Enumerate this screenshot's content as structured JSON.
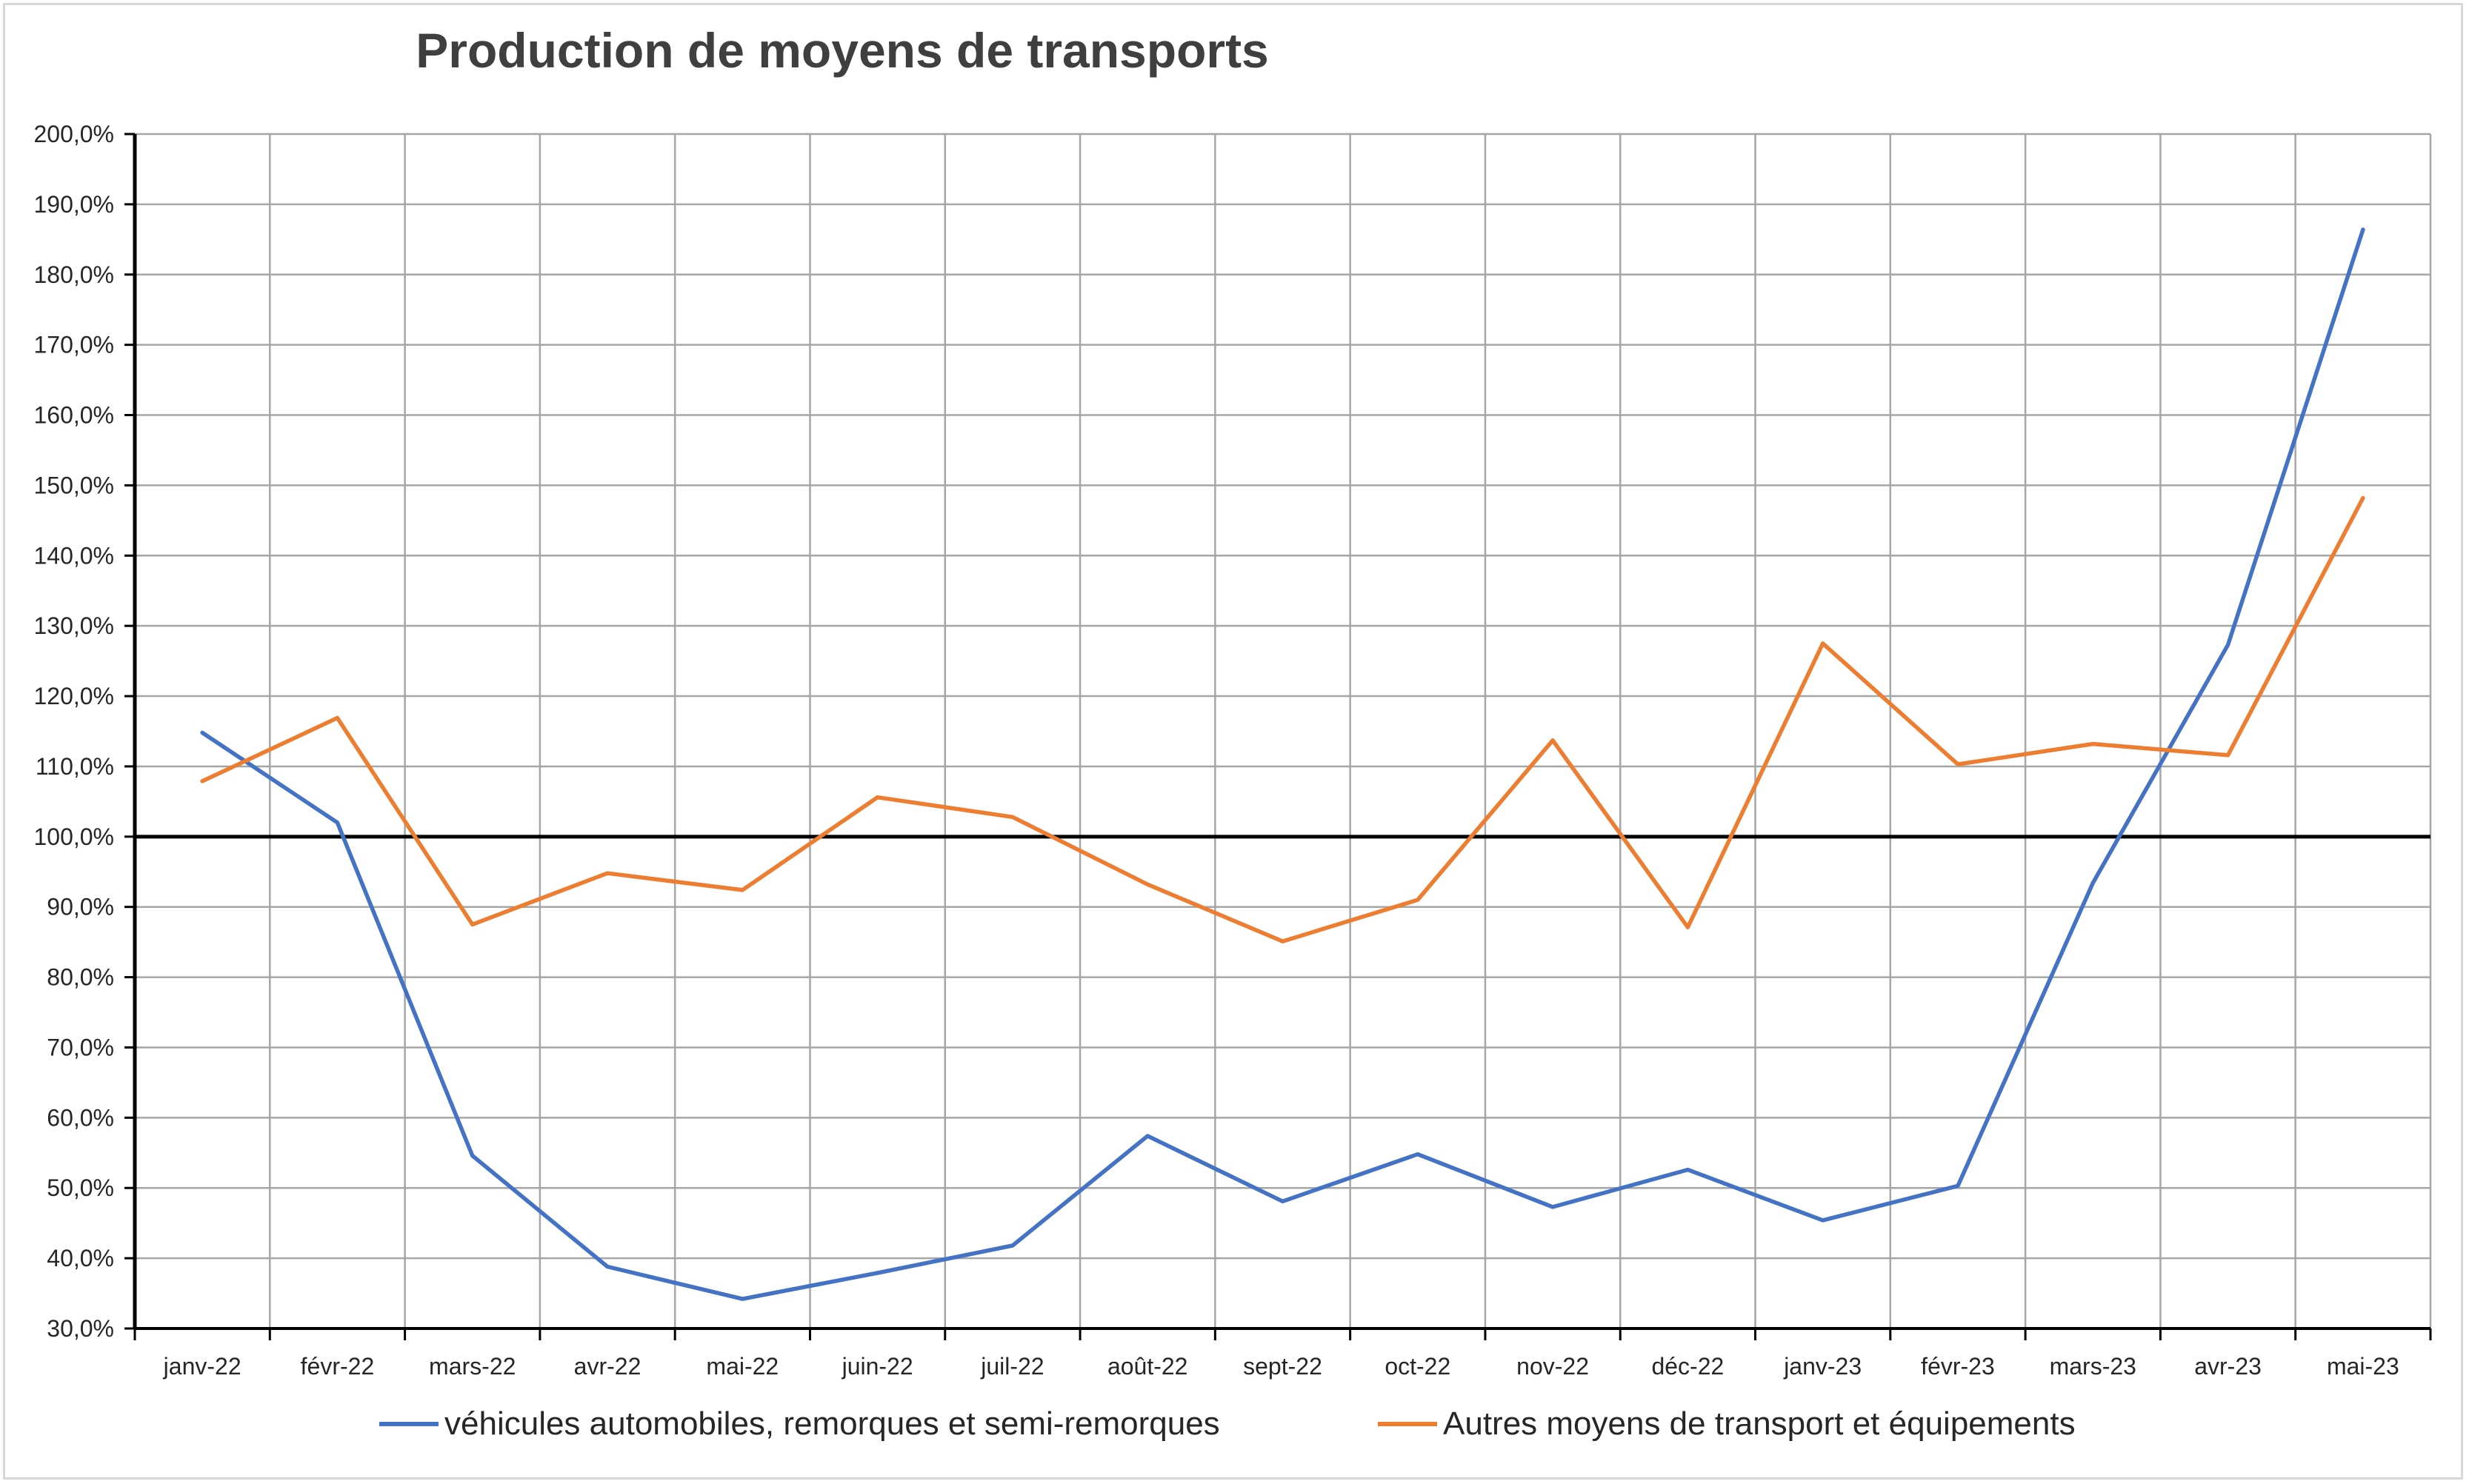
{
  "chart_data": {
    "type": "line",
    "title": "Production de moyens de transports",
    "categories": [
      "janv-22",
      "févr-22",
      "mars-22",
      "avr-22",
      "mai-22",
      "juin-22",
      "juil-22",
      "août-22",
      "sept-22",
      "oct-22",
      "nov-22",
      "déc-22",
      "janv-23",
      "févr-23",
      "mars-23",
      "avr-23",
      "mai-23"
    ],
    "ylim": [
      30,
      200
    ],
    "yticks": [
      30,
      40,
      50,
      60,
      70,
      80,
      90,
      100,
      110,
      120,
      130,
      140,
      150,
      160,
      170,
      180,
      190,
      200
    ],
    "ytick_labels": [
      "30,0%",
      "40,0%",
      "50,0%",
      "60,0%",
      "70,0%",
      "80,0%",
      "90,0%",
      "100,0%",
      "110,0%",
      "120,0%",
      "130,0%",
      "140,0%",
      "150,0%",
      "160,0%",
      "170,0%",
      "180,0%",
      "190,0%",
      "200,0%"
    ],
    "reference_line": 100,
    "grid": true,
    "legend": "bottom",
    "series": [
      {
        "name": "véhicules automobiles, remorques et semi-remorques",
        "color": "#4472c4",
        "values": [
          114.8,
          102.0,
          54.6,
          38.8,
          34.2,
          37.9,
          41.8,
          57.4,
          48.1,
          54.8,
          47.3,
          52.6,
          45.4,
          50.3,
          93.4,
          127.3,
          186.4
        ]
      },
      {
        "name": "Autres moyens de transport et équipements",
        "color": "#ed7d31",
        "values": [
          107.9,
          116.9,
          87.5,
          94.8,
          92.4,
          105.6,
          102.8,
          93.2,
          85.1,
          91.0,
          113.7,
          87.1,
          127.5,
          110.3,
          113.2,
          111.6,
          148.2
        ]
      }
    ]
  }
}
